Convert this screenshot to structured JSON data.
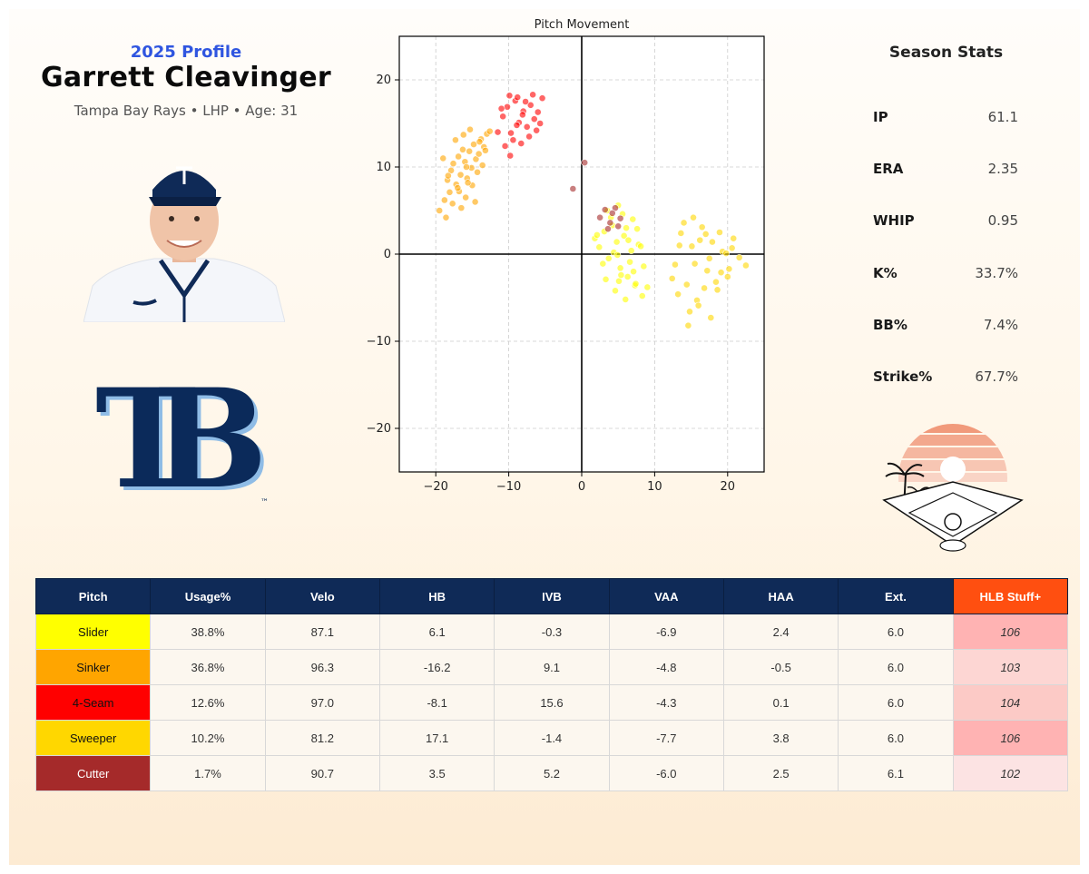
{
  "profile": {
    "season_label": "2025 Profile",
    "name": "Garrett Cleavinger",
    "subline": "Tampa Bay Rays • LHP • Age: 31"
  },
  "logo": {
    "text": "TB",
    "tm": "™"
  },
  "colors": {
    "navy": "#0f2a57",
    "stuff_header": "#ff4f10",
    "slider": "#ffff00",
    "sinker": "#ffa500",
    "fourseam": "#ff0000",
    "sweeper": "#ffd700",
    "cutter": "#a52a2a"
  },
  "season_stats": {
    "title": "Season Stats",
    "rows": [
      {
        "label": "IP",
        "value": "61.1"
      },
      {
        "label": "ERA",
        "value": "2.35"
      },
      {
        "label": "WHIP",
        "value": "0.95"
      },
      {
        "label": "K%",
        "value": "33.7%"
      },
      {
        "label": "BB%",
        "value": "7.4%"
      },
      {
        "label": "Strike%",
        "value": "67.7%"
      }
    ]
  },
  "chart_data": {
    "type": "scatter",
    "title": "Pitch Movement",
    "xlabel": "",
    "ylabel": "",
    "xlim": [
      -25,
      25
    ],
    "ylim": [
      -25,
      25
    ],
    "x_ticks": [
      -20,
      -10,
      0,
      10,
      20
    ],
    "y_ticks": [
      -20,
      -10,
      0,
      10,
      20
    ],
    "grid": true,
    "series": [
      {
        "color": "#ffa500",
        "x": [
          -19.5,
          -18.8,
          -18.4,
          -18.1,
          -17.9,
          -17.6,
          -17.2,
          -16.9,
          -16.6,
          -16.3,
          -16.0,
          -15.7,
          -15.4,
          -15.1,
          -14.8,
          -14.5,
          -14.1,
          -13.8,
          -13.4,
          -13.0,
          -12.6,
          -18.6,
          -17.7,
          -16.8,
          -15.9,
          -15.0,
          -14.3,
          -13.6,
          -17.3,
          -16.2,
          -15.3,
          -14.6,
          -19.0,
          -18.3,
          -16.5,
          -15.6,
          -14.0,
          -13.2,
          -17.0,
          -15.8
        ],
        "y": [
          5.0,
          6.2,
          8.5,
          7.1,
          9.6,
          10.4,
          8.0,
          11.2,
          9.1,
          12.0,
          10.6,
          8.7,
          11.8,
          9.9,
          12.6,
          10.9,
          11.5,
          13.2,
          12.3,
          13.8,
          14.1,
          4.2,
          5.8,
          7.2,
          6.5,
          7.9,
          9.4,
          10.2,
          13.1,
          13.7,
          14.3,
          6.0,
          11.0,
          9.0,
          5.3,
          8.2,
          12.9,
          11.9,
          7.6,
          10.0
        ]
      },
      {
        "color": "#ff0000",
        "x": [
          -11.5,
          -10.8,
          -10.2,
          -9.7,
          -9.1,
          -8.6,
          -8.0,
          -7.5,
          -7.0,
          -6.5,
          -6.0,
          -5.4,
          -10.5,
          -9.4,
          -8.3,
          -7.2,
          -6.2,
          -9.9,
          -8.8,
          -7.7,
          -6.7,
          -5.7,
          -11.0,
          -8.9,
          -9.8,
          -8.1
        ],
        "y": [
          14.0,
          15.8,
          16.9,
          13.9,
          17.6,
          15.1,
          16.4,
          14.6,
          17.1,
          15.5,
          16.3,
          17.9,
          12.4,
          13.1,
          12.7,
          13.5,
          14.2,
          18.2,
          18.0,
          17.5,
          18.3,
          15.0,
          16.7,
          14.8,
          11.3,
          16.0
        ]
      },
      {
        "color": "#ffff00",
        "x": [
          1.8,
          2.4,
          3.1,
          3.7,
          4.2,
          4.8,
          5.3,
          5.8,
          6.3,
          6.8,
          7.3,
          7.8,
          8.3,
          2.9,
          4.0,
          5.1,
          6.1,
          7.1,
          8.1,
          3.5,
          4.6,
          5.6,
          6.6,
          7.6,
          4.4,
          5.4,
          6.4,
          7.4,
          3.3,
          5.0,
          6.0,
          7.0,
          8.5,
          2.1,
          9.0,
          4.9
        ],
        "y": [
          1.8,
          0.8,
          2.6,
          -0.5,
          3.3,
          1.4,
          -1.6,
          2.1,
          -2.6,
          0.4,
          -3.6,
          1.1,
          -4.8,
          -1.1,
          4.2,
          -3.1,
          3.0,
          -2.0,
          0.9,
          5.0,
          -4.2,
          4.6,
          -0.9,
          2.9,
          0.2,
          -2.4,
          1.6,
          -3.4,
          -2.9,
          5.6,
          -5.2,
          4.0,
          -1.4,
          2.2,
          -3.8,
          -0.1
        ]
      },
      {
        "color": "#ffd700",
        "x": [
          12.8,
          13.6,
          14.4,
          15.1,
          15.8,
          16.5,
          17.2,
          17.9,
          18.6,
          19.3,
          20.0,
          20.8,
          21.6,
          22.5,
          13.2,
          14.8,
          16.2,
          17.7,
          19.1,
          20.6,
          14.0,
          15.5,
          17.0,
          18.4,
          19.8,
          16.0,
          17.5,
          15.3,
          18.9,
          14.6,
          16.8,
          13.4,
          20.2,
          12.4
        ],
        "y": [
          -1.2,
          2.4,
          -3.5,
          0.9,
          -5.3,
          3.1,
          -1.9,
          1.4,
          -4.1,
          0.3,
          -2.6,
          1.8,
          -0.4,
          -1.3,
          -4.6,
          -6.6,
          1.6,
          -7.3,
          -2.1,
          0.7,
          3.6,
          -1.1,
          2.3,
          -3.2,
          0.1,
          -5.9,
          -0.5,
          4.2,
          2.5,
          -8.2,
          -3.9,
          1.0,
          -1.7,
          -2.8
        ]
      },
      {
        "color": "#a52a2a",
        "x": [
          2.5,
          3.2,
          3.9,
          4.6,
          5.3,
          3.6,
          4.2,
          5.0,
          -1.2,
          0.4
        ],
        "y": [
          4.2,
          5.1,
          3.6,
          5.3,
          4.1,
          2.9,
          4.7,
          3.2,
          7.5,
          10.5
        ]
      }
    ]
  },
  "table": {
    "headers": [
      "Pitch",
      "Usage%",
      "Velo",
      "HB",
      "IVB",
      "VAA",
      "HAA",
      "Ext.",
      "HLB Stuff+"
    ],
    "rows": [
      {
        "pitch": "Slider",
        "color": "#ffff00",
        "text_color": "#111111",
        "usage": "38.8%",
        "velo": "87.1",
        "hb": "6.1",
        "ivb": "-0.3",
        "vaa": "-6.9",
        "haa": "2.4",
        "ext": "6.0",
        "stuff": "106",
        "stuff_bg": "#ffb3b3"
      },
      {
        "pitch": "Sinker",
        "color": "#ffa500",
        "text_color": "#111111",
        "usage": "36.8%",
        "velo": "96.3",
        "hb": "-16.2",
        "ivb": "9.1",
        "vaa": "-4.8",
        "haa": "-0.5",
        "ext": "6.0",
        "stuff": "103",
        "stuff_bg": "#fdd6d3"
      },
      {
        "pitch": "4-Seam",
        "color": "#ff0000",
        "text_color": "#111111",
        "usage": "12.6%",
        "velo": "97.0",
        "hb": "-8.1",
        "ivb": "15.6",
        "vaa": "-4.3",
        "haa": "0.1",
        "ext": "6.0",
        "stuff": "104",
        "stuff_bg": "#fccac6"
      },
      {
        "pitch": "Sweeper",
        "color": "#ffd700",
        "text_color": "#111111",
        "usage": "10.2%",
        "velo": "81.2",
        "hb": "17.1",
        "ivb": "-1.4",
        "vaa": "-7.7",
        "haa": "3.8",
        "ext": "6.0",
        "stuff": "106",
        "stuff_bg": "#ffb3b3"
      },
      {
        "pitch": "Cutter",
        "color": "#a52a2a",
        "text_color": "#ffffff",
        "usage": "1.7%",
        "velo": "90.7",
        "hb": "3.5",
        "ivb": "5.2",
        "vaa": "-6.0",
        "haa": "2.5",
        "ext": "6.1",
        "stuff": "102",
        "stuff_bg": "#fce3e3"
      }
    ]
  }
}
